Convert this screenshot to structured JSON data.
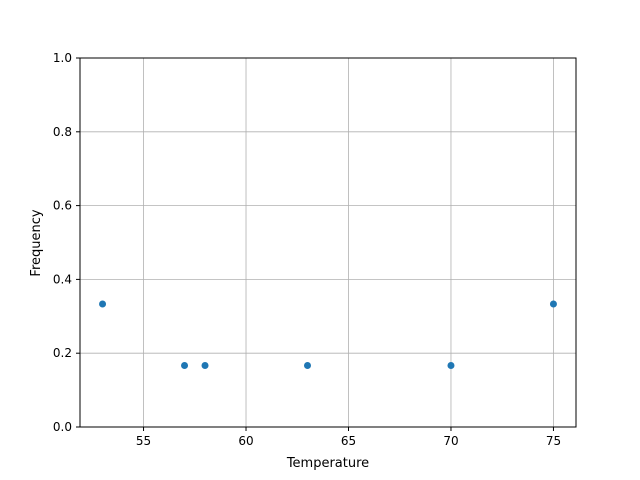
{
  "chart_data": {
    "type": "scatter",
    "title": "",
    "xlabel": "Temperature",
    "ylabel": "Frequency",
    "xlim": [
      51.9,
      76.1
    ],
    "ylim": [
      0,
      1
    ],
    "xticks": [
      55,
      60,
      65,
      70,
      75
    ],
    "xtick_labels": [
      "55",
      "60",
      "65",
      "70",
      "75"
    ],
    "yticks": [
      0,
      0.2,
      0.4,
      0.6,
      0.8,
      1.0
    ],
    "ytick_labels": [
      "0.0",
      "0.2",
      "0.4",
      "0.6",
      "0.8",
      "1.0"
    ],
    "grid": true,
    "color": "#1f77b4",
    "x": [
      53,
      57,
      58,
      63,
      70,
      75
    ],
    "y": [
      0.3333,
      0.1667,
      0.1667,
      0.1667,
      0.1667,
      0.3333
    ]
  }
}
